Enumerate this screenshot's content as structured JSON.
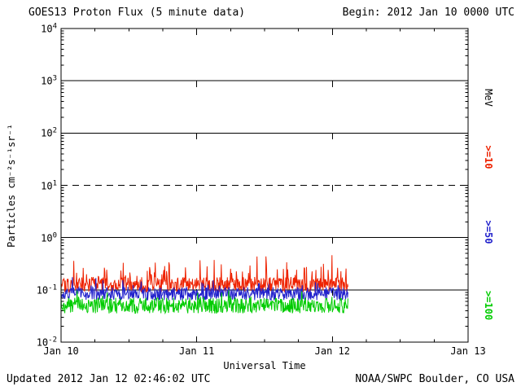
{
  "header": {
    "title": "GOES13 Proton Flux (5 minute data)",
    "begin_label": "Begin: 2012 Jan 10 0000 UTC"
  },
  "footer": {
    "updated": "Updated 2012 Jan 12 02:46:02 UTC",
    "source": "NOAA/SWPC Boulder, CO USA"
  },
  "chart_data": {
    "type": "line",
    "title": "GOES13 Proton Flux (5 minute data)",
    "begin": "2012 Jan 10 0000 UTC",
    "xlabel": "Universal Time",
    "ylabel": "Particles cm⁻²s⁻¹sr⁻¹",
    "right_axis_title": "MeV",
    "x_tick_labels": [
      "Jan 10",
      "Jan 11",
      "Jan 12",
      "Jan 13"
    ],
    "x_span_days": 3,
    "y_scale": "log",
    "y_tick_exponents": [
      4,
      3,
      2,
      1,
      0,
      -1,
      -2
    ],
    "y_log_limits": [
      -2,
      4
    ],
    "grid": {
      "solid_y_exponents": [
        3,
        2,
        0,
        -1
      ],
      "dashed_y_exponents": [
        1
      ],
      "dashed_x_days": [
        1,
        2
      ]
    },
    "cadence_minutes": 5,
    "data_end_day": 2.115,
    "series": [
      {
        "name": ">=10",
        "unit": "MeV",
        "color": "#ee2200",
        "approx_flux_mean": 0.12,
        "approx_flux_range": [
          0.08,
          0.5
        ],
        "log_base": -1.05,
        "jitter": 0.3,
        "spike_prob": 0.12,
        "spike_amp": 0.45,
        "seed": 101
      },
      {
        "name": ">=50",
        "unit": "MeV",
        "color": "#2222cc",
        "approx_flux_mean": 0.08,
        "approx_flux_range": [
          0.05,
          0.2
        ],
        "log_base": -1.2,
        "jitter": 0.25,
        "spike_prob": 0.08,
        "spike_amp": 0.25,
        "seed": 202
      },
      {
        "name": ">=100",
        "unit": "MeV",
        "color": "#00cc00",
        "approx_flux_mean": 0.045,
        "approx_flux_range": [
          0.025,
          0.08
        ],
        "log_base": -1.45,
        "jitter": 0.3,
        "spike_prob": 0.06,
        "spike_amp": 0.18,
        "seed": 303
      }
    ]
  }
}
